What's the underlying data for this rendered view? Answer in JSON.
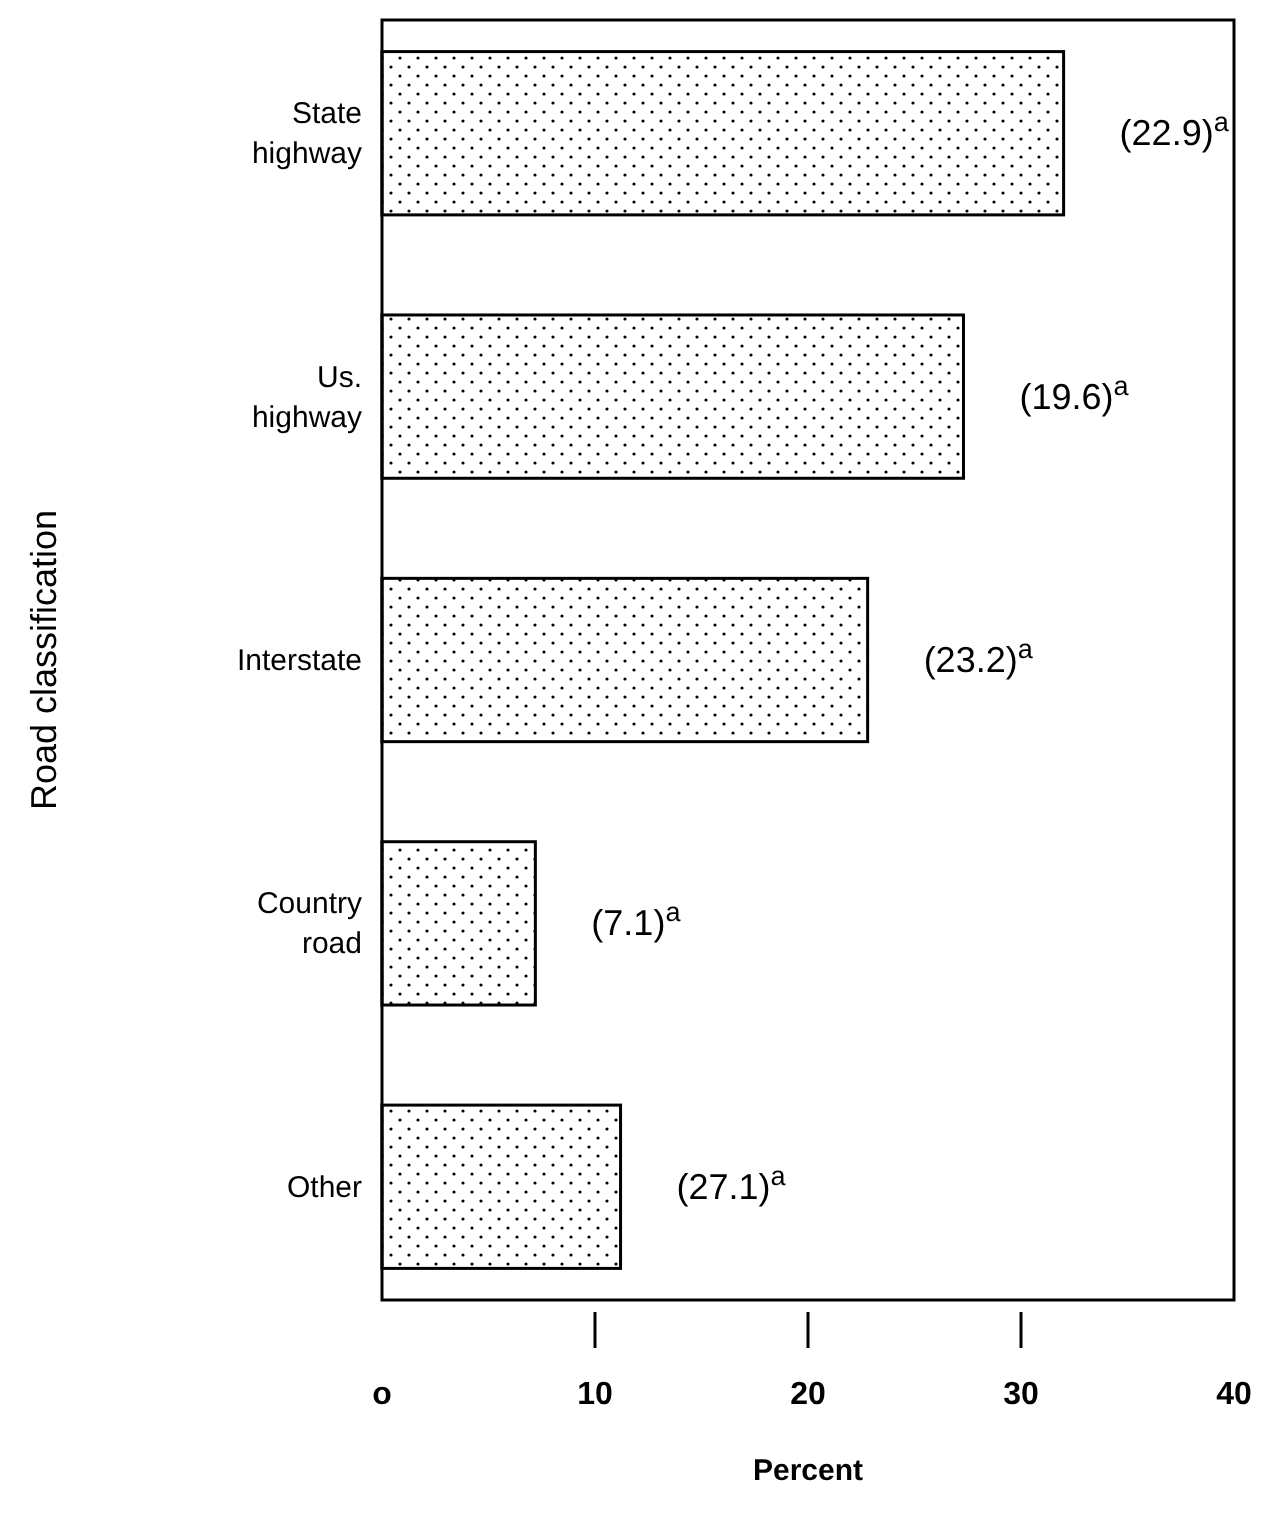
{
  "chart_data": {
    "type": "bar",
    "orientation": "horizontal",
    "xlabel": "Percent",
    "ylabel": "Road classification",
    "categories": [
      "State\nhighway",
      "Us.\nhighway",
      "Interstate",
      "Country\nroad",
      "Other"
    ],
    "values": [
      32,
      27.3,
      22.8,
      7.2,
      11.2
    ],
    "color": "#000000",
    "annotations": [
      {
        "text": "(22.9)$^{a}$",
        "x": 32,
        "y": "State\nhighway"
      },
      {
        "text": "(19.6)$^{a}$",
        "x": 27.3,
        "y": "Us.\nhighway"
      },
      {
        "text": "(23.2)$^{a}$",
        "x": 22.8,
        "y": "Interstate"
      },
      {
        "text": "(7.1)$^{a}$",
        "x": 7.2,
        "y": "Country\nroad"
      },
      {
        "text": "(27.1)$^{a}$",
        "x": 11.2,
        "y": "Other"
      }
    ],
    "xlim": [
      0,
      40
    ],
    "xticks": [
      {
        "value": 0,
        "label": "o"
      },
      10,
      20,
      30,
      40
    ],
    "grid": false
  }
}
